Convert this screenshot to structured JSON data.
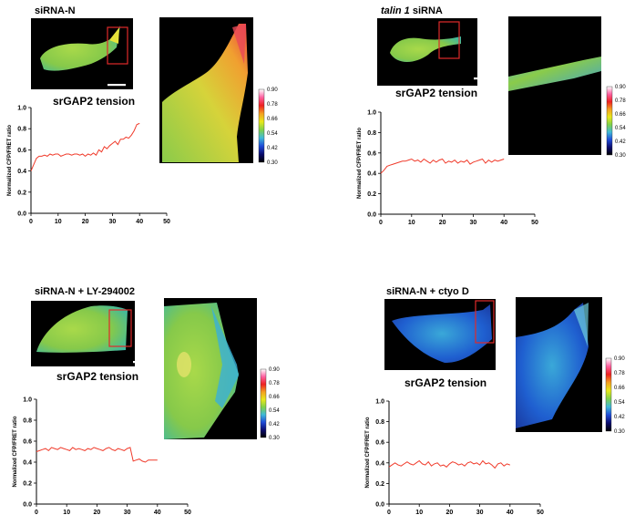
{
  "figure": {
    "palette": {
      "red": "#e8262b",
      "line": "#f03a2a",
      "roi": "#e02a2a"
    },
    "colorbar_ticks": [
      "0.90",
      "0.78",
      "0.66",
      "0.54",
      "0.42",
      "0.30"
    ],
    "colorbar_gradient": [
      "#ffffff",
      "#ff5fa0",
      "#ee2020",
      "#f4a020",
      "#e8e81a",
      "#7fd14a",
      "#3fb9d9",
      "#1f4bd8",
      "#0b0b6e",
      "#000000"
    ]
  },
  "panels": [
    {
      "title_parts": [
        {
          "text": "siRNA-N",
          "italic": false
        }
      ],
      "tension_label": "srGAP2 tension",
      "cell_color": "green-yellow"
    },
    {
      "title_parts": [
        {
          "text": "talin 1",
          "italic": true
        },
        {
          "text": " siRNA",
          "italic": false
        }
      ],
      "tension_label": "srGAP2 tension",
      "cell_color": "green"
    },
    {
      "title_parts": [
        {
          "text": "siRNA-N + LY-294002",
          "italic": false
        }
      ],
      "tension_label": "srGAP2 tension",
      "cell_color": "green"
    },
    {
      "title_parts": [
        {
          "text": "siRNA-N + ctyo D",
          "italic": false
        }
      ],
      "tension_label": "srGAP2 tension",
      "cell_color": "blue"
    }
  ],
  "chart_data": [
    {
      "type": "line",
      "ylabel": "Normalized CFP/FRET ratio",
      "xlim": [
        0,
        50
      ],
      "ylim": [
        0,
        1.0
      ],
      "xticks": [
        0,
        10,
        20,
        30,
        40,
        50
      ],
      "yticks": [
        0.0,
        0.2,
        0.4,
        0.6,
        0.8,
        1.0
      ],
      "series": [
        {
          "x": [
            0,
            1,
            2,
            3,
            4,
            5,
            6,
            7,
            8,
            9,
            10,
            11,
            12,
            13,
            14,
            15,
            16,
            17,
            18,
            19,
            20,
            21,
            22,
            23,
            24,
            25,
            26,
            27,
            28,
            29,
            30,
            31,
            32,
            33,
            34,
            35,
            36,
            37,
            38,
            39,
            40
          ],
          "y": [
            0.4,
            0.46,
            0.52,
            0.54,
            0.54,
            0.55,
            0.54,
            0.56,
            0.55,
            0.56,
            0.56,
            0.54,
            0.55,
            0.56,
            0.56,
            0.55,
            0.56,
            0.56,
            0.55,
            0.56,
            0.54,
            0.56,
            0.55,
            0.57,
            0.55,
            0.6,
            0.58,
            0.63,
            0.61,
            0.64,
            0.66,
            0.68,
            0.65,
            0.7,
            0.7,
            0.72,
            0.71,
            0.74,
            0.78,
            0.84,
            0.85
          ]
        }
      ]
    },
    {
      "type": "line",
      "ylabel": "Normalized CFP/FRET ratio",
      "xlim": [
        0,
        50
      ],
      "ylim": [
        0,
        1.0
      ],
      "xticks": [
        0,
        10,
        20,
        30,
        40,
        50
      ],
      "yticks": [
        0.0,
        0.2,
        0.4,
        0.6,
        0.8,
        1.0
      ],
      "series": [
        {
          "x": [
            0,
            1,
            2,
            3,
            4,
            5,
            6,
            7,
            8,
            9,
            10,
            11,
            12,
            13,
            14,
            15,
            16,
            17,
            18,
            19,
            20,
            21,
            22,
            23,
            24,
            25,
            26,
            27,
            28,
            29,
            30,
            31,
            32,
            33,
            34,
            35,
            36,
            37,
            38,
            39,
            40
          ],
          "y": [
            0.4,
            0.43,
            0.47,
            0.48,
            0.49,
            0.5,
            0.51,
            0.52,
            0.52,
            0.53,
            0.54,
            0.52,
            0.53,
            0.51,
            0.54,
            0.52,
            0.5,
            0.53,
            0.51,
            0.53,
            0.54,
            0.5,
            0.52,
            0.51,
            0.53,
            0.5,
            0.52,
            0.51,
            0.53,
            0.49,
            0.51,
            0.52,
            0.53,
            0.54,
            0.5,
            0.53,
            0.51,
            0.53,
            0.52,
            0.53,
            0.54
          ]
        }
      ]
    },
    {
      "type": "line",
      "ylabel": "Normalized CFP/FRET ratio",
      "xlim": [
        0,
        50
      ],
      "ylim": [
        0,
        1.0
      ],
      "xticks": [
        0,
        10,
        20,
        30,
        40,
        50
      ],
      "yticks": [
        0.0,
        0.2,
        0.4,
        0.6,
        0.8,
        1.0
      ],
      "series": [
        {
          "x": [
            0,
            1,
            2,
            3,
            4,
            5,
            6,
            7,
            8,
            9,
            10,
            11,
            12,
            13,
            14,
            15,
            16,
            17,
            18,
            19,
            20,
            21,
            22,
            23,
            24,
            25,
            26,
            27,
            28,
            29,
            30,
            31,
            32,
            33,
            34,
            35,
            36,
            37,
            38,
            39,
            40
          ],
          "y": [
            0.5,
            0.51,
            0.52,
            0.53,
            0.51,
            0.54,
            0.53,
            0.52,
            0.54,
            0.53,
            0.52,
            0.51,
            0.54,
            0.52,
            0.53,
            0.52,
            0.51,
            0.53,
            0.52,
            0.54,
            0.53,
            0.52,
            0.51,
            0.53,
            0.54,
            0.52,
            0.51,
            0.53,
            0.52,
            0.51,
            0.53,
            0.54,
            0.41,
            0.42,
            0.43,
            0.41,
            0.4,
            0.42,
            0.42,
            0.42,
            0.42
          ]
        }
      ]
    },
    {
      "type": "line",
      "ylabel": "Normalized CFP/FRET ratio",
      "xlim": [
        0,
        50
      ],
      "ylim": [
        0,
        1.0
      ],
      "xticks": [
        0,
        10,
        20,
        30,
        40,
        50
      ],
      "yticks": [
        0.0,
        0.2,
        0.4,
        0.6,
        0.8,
        1.0
      ],
      "series": [
        {
          "x": [
            0,
            1,
            2,
            3,
            4,
            5,
            6,
            7,
            8,
            9,
            10,
            11,
            12,
            13,
            14,
            15,
            16,
            17,
            18,
            19,
            20,
            21,
            22,
            23,
            24,
            25,
            26,
            27,
            28,
            29,
            30,
            31,
            32,
            33,
            34,
            35,
            36,
            37,
            38,
            39,
            40
          ],
          "y": [
            0.36,
            0.38,
            0.4,
            0.38,
            0.37,
            0.39,
            0.41,
            0.39,
            0.38,
            0.4,
            0.42,
            0.39,
            0.38,
            0.41,
            0.37,
            0.39,
            0.4,
            0.37,
            0.38,
            0.36,
            0.39,
            0.41,
            0.4,
            0.38,
            0.39,
            0.37,
            0.4,
            0.41,
            0.39,
            0.4,
            0.38,
            0.42,
            0.39,
            0.4,
            0.38,
            0.35,
            0.39,
            0.4,
            0.37,
            0.39,
            0.38
          ]
        }
      ]
    }
  ]
}
